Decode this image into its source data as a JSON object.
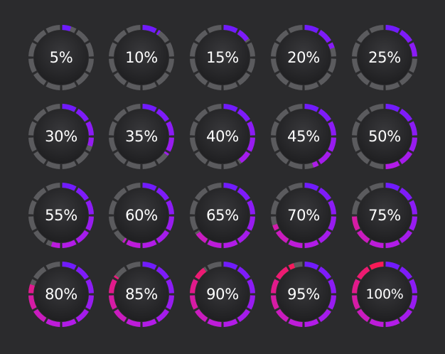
{
  "colors": {
    "background": "#2b2b2d",
    "track": "#5b5b5e",
    "disc_center": "#38383b",
    "disc_edge": "#1f1f21",
    "label": "#ffffff",
    "gradient_start": "#6a1bff",
    "gradient_mid": "#b81be6",
    "gradient_end": "#ff1a4a"
  },
  "segments_per_ring": 12,
  "gauges": [
    {
      "label": "5%",
      "value": 5
    },
    {
      "label": "10%",
      "value": 10
    },
    {
      "label": "15%",
      "value": 15
    },
    {
      "label": "20%",
      "value": 20
    },
    {
      "label": "25%",
      "value": 25
    },
    {
      "label": "30%",
      "value": 30
    },
    {
      "label": "35%",
      "value": 35
    },
    {
      "label": "40%",
      "value": 40
    },
    {
      "label": "45%",
      "value": 45
    },
    {
      "label": "50%",
      "value": 50
    },
    {
      "label": "55%",
      "value": 55
    },
    {
      "label": "60%",
      "value": 60
    },
    {
      "label": "65%",
      "value": 65
    },
    {
      "label": "70%",
      "value": 70
    },
    {
      "label": "75%",
      "value": 75
    },
    {
      "label": "80%",
      "value": 80
    },
    {
      "label": "85%",
      "value": 85
    },
    {
      "label": "90%",
      "value": 90
    },
    {
      "label": "95%",
      "value": 95
    },
    {
      "label": "100%",
      "value": 100
    }
  ]
}
